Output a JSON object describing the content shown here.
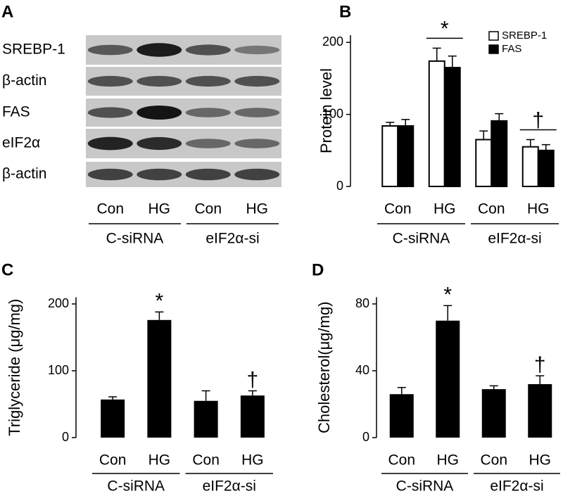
{
  "chart_data": [
    {
      "type": "blot",
      "panel": "A",
      "rows": [
        "SREBP-1",
        "β-actin",
        "FAS",
        "eIF2α",
        "β-actin"
      ],
      "categories": [
        "Con",
        "HG",
        "Con",
        "HG"
      ],
      "groups": [
        "C-siRNA",
        "eIF2α-si"
      ]
    },
    {
      "type": "grouped_bar",
      "panel": "B",
      "ylabel": "Protein level",
      "categories": [
        "Con",
        "HG",
        "Con",
        "HG"
      ],
      "groups": [
        "C-siRNA",
        "eIF2α-si"
      ],
      "series": [
        {
          "name": "SREBP-1",
          "color": "#ffffff",
          "values": [
            84,
            174,
            65,
            55
          ],
          "errors": [
            5,
            18,
            12,
            10
          ]
        },
        {
          "name": "FAS",
          "color": "#000000",
          "values": [
            84,
            165,
            91,
            50
          ],
          "errors": [
            9,
            16,
            10,
            8
          ]
        }
      ],
      "ylim": [
        0,
        210
      ],
      "yticks": [
        0,
        100,
        200
      ],
      "annotations": [
        {
          "label": "*",
          "category": 1
        },
        {
          "label": "†",
          "category": 3
        }
      ],
      "annotation_bracket": true,
      "legend": "upper right"
    },
    {
      "type": "bar",
      "panel": "C",
      "ylabel": "Triglyceride (μg/mg)",
      "categories": [
        "Con",
        "HG",
        "Con",
        "HG"
      ],
      "groups": [
        "C-siRNA",
        "eIF2α-si"
      ],
      "values": [
        57,
        176,
        55,
        63
      ],
      "errors": [
        4,
        12,
        15,
        7
      ],
      "color": "#000000",
      "ylim": [
        0,
        210
      ],
      "yticks": [
        0,
        100,
        200
      ],
      "annotations": [
        {
          "label": "*",
          "category": 1
        },
        {
          "label": "†",
          "category": 3
        }
      ]
    },
    {
      "type": "bar",
      "panel": "D",
      "ylabel": "Cholesterol(μg/mg)",
      "categories": [
        "Con",
        "HG",
        "Con",
        "HG"
      ],
      "groups": [
        "C-siRNA",
        "eIF2α-si"
      ],
      "values": [
        26,
        70,
        29,
        32
      ],
      "errors": [
        4,
        9,
        2,
        5
      ],
      "color": "#000000",
      "ylim": [
        0,
        84
      ],
      "yticks": [
        0,
        40,
        80
      ],
      "annotations": [
        {
          "label": "*",
          "category": 1
        },
        {
          "label": "†",
          "category": 3
        }
      ]
    }
  ]
}
